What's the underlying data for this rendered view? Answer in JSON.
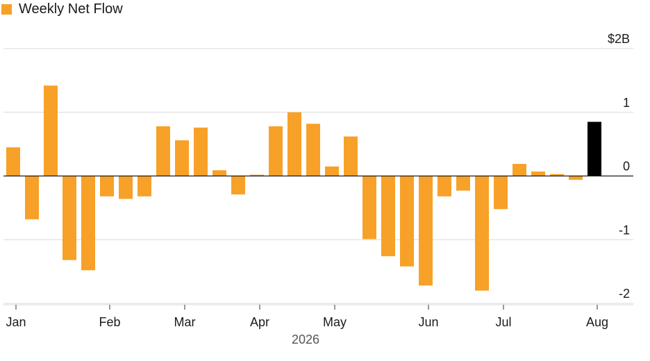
{
  "chart_data": {
    "type": "bar",
    "legend": {
      "label": "Weekly Net Flow",
      "color": "#f7a128"
    },
    "colors": {
      "bar": "#f7a128",
      "highlight": "#000000",
      "grid": "#d9d9d9",
      "zero": "#1a1a1a"
    },
    "ylim": [
      -2,
      2
    ],
    "y_ticks": [
      {
        "value": 2,
        "label": "$2B"
      },
      {
        "value": 1,
        "label": "1"
      },
      {
        "value": 0,
        "label": "0"
      },
      {
        "value": -1,
        "label": "-1"
      },
      {
        "value": -2,
        "label": "-2"
      }
    ],
    "x_ticks": [
      {
        "week": 0.5,
        "label": "Jan"
      },
      {
        "week": 5.5,
        "label": "Feb"
      },
      {
        "week": 9.5,
        "label": "Mar"
      },
      {
        "week": 13.5,
        "label": "Apr"
      },
      {
        "week": 17.5,
        "label": "May"
      },
      {
        "week": 22.5,
        "label": "Jun"
      },
      {
        "week": 26.5,
        "label": "Jul"
      },
      {
        "week": 31.5,
        "label": "Aug"
      }
    ],
    "year_label": "2026",
    "values": [
      0.45,
      -0.68,
      1.42,
      -1.32,
      -1.48,
      -0.32,
      -0.36,
      -0.32,
      0.78,
      0.56,
      0.76,
      0.09,
      -0.29,
      0.02,
      0.78,
      1.0,
      0.82,
      0.15,
      0.62,
      -0.99,
      -1.26,
      -1.42,
      -1.72,
      -0.32,
      -0.23,
      -1.8,
      -0.52,
      0.19,
      0.07,
      0.03,
      -0.06,
      0.85
    ],
    "highlight_index": 31
  }
}
